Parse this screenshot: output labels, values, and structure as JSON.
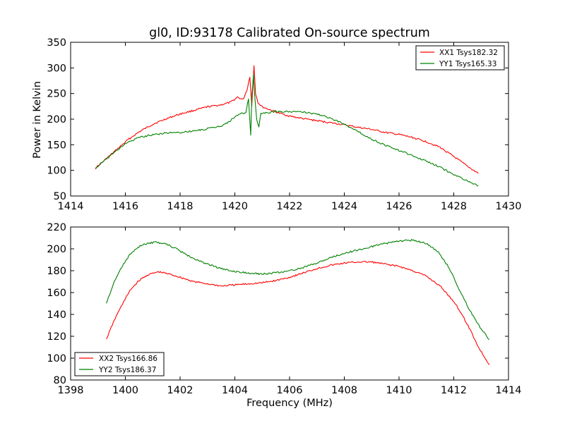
{
  "chart_data": [
    {
      "type": "line",
      "title": "gl0, ID:93178 Calibrated On-source spectrum",
      "xlabel": "",
      "ylabel": "Power in Kelvin",
      "xlim": [
        1414,
        1430
      ],
      "ylim": [
        50,
        350
      ],
      "xticks": [
        "1414",
        "1416",
        "1418",
        "1420",
        "1422",
        "1424",
        "1426",
        "1428",
        "1430"
      ],
      "yticks": [
        "50",
        "100",
        "150",
        "200",
        "250",
        "300",
        "350"
      ],
      "legend": "top-right",
      "grid": false,
      "series": [
        {
          "name": "XX1 Tsys182.32",
          "color": "#ff0000",
          "x": [
            1414.9,
            1415.2,
            1415.5,
            1415.8,
            1416.1,
            1416.5,
            1417.0,
            1417.5,
            1418.0,
            1418.5,
            1419.0,
            1419.5,
            1419.85,
            1420.1,
            1420.3,
            1420.45,
            1420.55,
            1420.62,
            1420.7,
            1420.76,
            1420.85,
            1421.0,
            1421.3,
            1421.6,
            1422.0,
            1422.5,
            1423.0,
            1423.5,
            1424.0,
            1424.5,
            1425.0,
            1425.5,
            1426.0,
            1426.5,
            1427.0,
            1427.5,
            1428.0,
            1428.5,
            1428.9
          ],
          "y": [
            104,
            118,
            132,
            146,
            160,
            175,
            190,
            201,
            210,
            217,
            224,
            228,
            233,
            243,
            238,
            258,
            283,
            225,
            305,
            250,
            232,
            224,
            218,
            212,
            206,
            201,
            197,
            193,
            189,
            184,
            180,
            174,
            170,
            164,
            156,
            145,
            127,
            108,
            94
          ]
        },
        {
          "name": "YY1 Tsys165.33",
          "color": "#008000",
          "x": [
            1414.9,
            1415.2,
            1415.5,
            1415.8,
            1416.1,
            1416.5,
            1417.0,
            1417.5,
            1418.0,
            1418.5,
            1419.0,
            1419.5,
            1419.8,
            1420.0,
            1420.2,
            1420.4,
            1420.5,
            1420.58,
            1420.63,
            1420.68,
            1420.72,
            1420.8,
            1420.88,
            1420.95,
            1421.1,
            1421.5,
            1422.0,
            1422.5,
            1423.0,
            1423.5,
            1424.0,
            1424.5,
            1425.0,
            1425.5,
            1426.0,
            1426.5,
            1427.0,
            1427.5,
            1428.0,
            1428.5,
            1428.9
          ],
          "y": [
            104,
            117,
            131,
            144,
            155,
            164,
            170,
            173,
            174,
            177,
            181,
            187,
            195,
            205,
            210,
            212,
            240,
            170,
            250,
            287,
            250,
            200,
            185,
            210,
            212,
            215,
            215,
            214,
            210,
            202,
            190,
            176,
            161,
            149,
            139,
            129,
            118,
            106,
            92,
            79,
            70
          ]
        }
      ]
    },
    {
      "type": "line",
      "title": "",
      "xlabel": "Frequency (MHz)",
      "ylabel": "",
      "xlim": [
        1398,
        1414
      ],
      "ylim": [
        80,
        220
      ],
      "xticks": [
        "1398",
        "1400",
        "1402",
        "1404",
        "1406",
        "1408",
        "1410",
        "1412",
        "1414"
      ],
      "yticks": [
        "80",
        "100",
        "120",
        "140",
        "160",
        "180",
        "200",
        "220"
      ],
      "legend": "bottom-left",
      "grid": false,
      "series": [
        {
          "name": "XX2 Tsys166.86",
          "color": "#ff0000",
          "x": [
            1399.3,
            1399.6,
            1399.9,
            1400.2,
            1400.5,
            1400.8,
            1401.2,
            1401.6,
            1402.0,
            1402.5,
            1403.0,
            1403.5,
            1404.0,
            1404.5,
            1405.0,
            1405.5,
            1406.0,
            1406.5,
            1407.0,
            1407.5,
            1408.0,
            1408.5,
            1409.0,
            1409.5,
            1410.0,
            1410.5,
            1411.0,
            1411.5,
            1412.0,
            1412.3,
            1412.6,
            1412.9,
            1413.3
          ],
          "y": [
            117,
            135,
            150,
            163,
            171,
            176,
            179,
            177,
            174,
            170,
            168,
            166,
            167,
            168,
            169,
            171,
            174,
            178,
            182,
            185,
            187,
            188,
            188,
            186,
            184,
            180,
            175,
            166,
            152,
            140,
            126,
            110,
            94
          ]
        },
        {
          "name": "YY2 Tsys186.37",
          "color": "#008000",
          "x": [
            1399.3,
            1399.6,
            1399.9,
            1400.2,
            1400.5,
            1400.8,
            1401.1,
            1401.4,
            1401.8,
            1402.2,
            1402.6,
            1403.0,
            1403.5,
            1404.0,
            1404.5,
            1405.0,
            1405.5,
            1406.0,
            1406.5,
            1407.0,
            1407.5,
            1408.0,
            1408.5,
            1409.0,
            1409.5,
            1410.0,
            1410.5,
            1411.0,
            1411.4,
            1411.8,
            1412.2,
            1412.6,
            1413.0,
            1413.3
          ],
          "y": [
            150,
            170,
            185,
            196,
            202,
            205,
            206,
            205,
            201,
            195,
            190,
            186,
            182,
            179,
            178,
            177,
            178,
            180,
            183,
            187,
            192,
            196,
            199,
            202,
            205,
            207,
            208,
            205,
            198,
            184,
            163,
            143,
            127,
            117
          ]
        }
      ]
    }
  ]
}
